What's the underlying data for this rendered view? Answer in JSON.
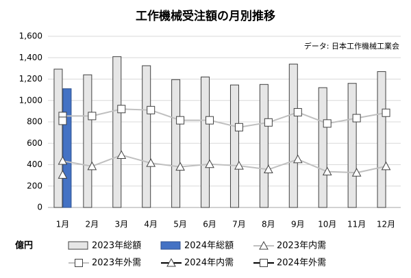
{
  "chart_data": {
    "type": "combo",
    "title": "工作機械受注額の月別推移",
    "annotation": "データ: 日本工作機械工業会",
    "unit_label": "億円",
    "categories": [
      "1月",
      "2月",
      "3月",
      "4月",
      "5月",
      "6月",
      "7月",
      "8月",
      "9月",
      "10月",
      "11月",
      "12月"
    ],
    "series": [
      {
        "name": "2023年総額",
        "type": "bar",
        "color": "#e6e6e6",
        "stroke": "#404040",
        "values": [
          1293,
          1240,
          1410,
          1325,
          1195,
          1220,
          1145,
          1150,
          1340,
          1120,
          1160,
          1270
        ]
      },
      {
        "name": "2024年総額",
        "type": "bar",
        "color": "#4472c4",
        "stroke": "#2f528f",
        "values": [
          1110,
          null,
          null,
          null,
          null,
          null,
          null,
          null,
          null,
          null,
          null,
          null
        ]
      },
      {
        "name": "2023年内需",
        "type": "line",
        "marker": "triangle",
        "color": "#bfbfbf",
        "values": [
          435,
          385,
          490,
          415,
          380,
          405,
          390,
          355,
          450,
          335,
          325,
          385
        ]
      },
      {
        "name": "2023年外需",
        "type": "line",
        "marker": "square",
        "color": "#bfbfbf",
        "values": [
          855,
          855,
          920,
          910,
          815,
          815,
          750,
          795,
          890,
          785,
          835,
          885
        ]
      },
      {
        "name": "2024年内需",
        "type": "line",
        "marker": "triangle",
        "color": "#000000",
        "values": [
          305,
          null,
          null,
          null,
          null,
          null,
          null,
          null,
          null,
          null,
          null,
          null
        ]
      },
      {
        "name": "2024年外需",
        "type": "line",
        "marker": "square",
        "color": "#000000",
        "values": [
          810,
          null,
          null,
          null,
          null,
          null,
          null,
          null,
          null,
          null,
          null,
          null
        ]
      }
    ],
    "ylim": [
      0,
      1600
    ],
    "yticks": [
      0,
      200,
      400,
      600,
      800,
      {
        "value": 1000,
        "label": "1,000"
      },
      {
        "value": 1200,
        "label": "1,200"
      },
      {
        "value": 1400,
        "label": "1,400"
      },
      {
        "value": 1600,
        "label": "1,600"
      }
    ],
    "grid": true,
    "legend": "bottom"
  }
}
